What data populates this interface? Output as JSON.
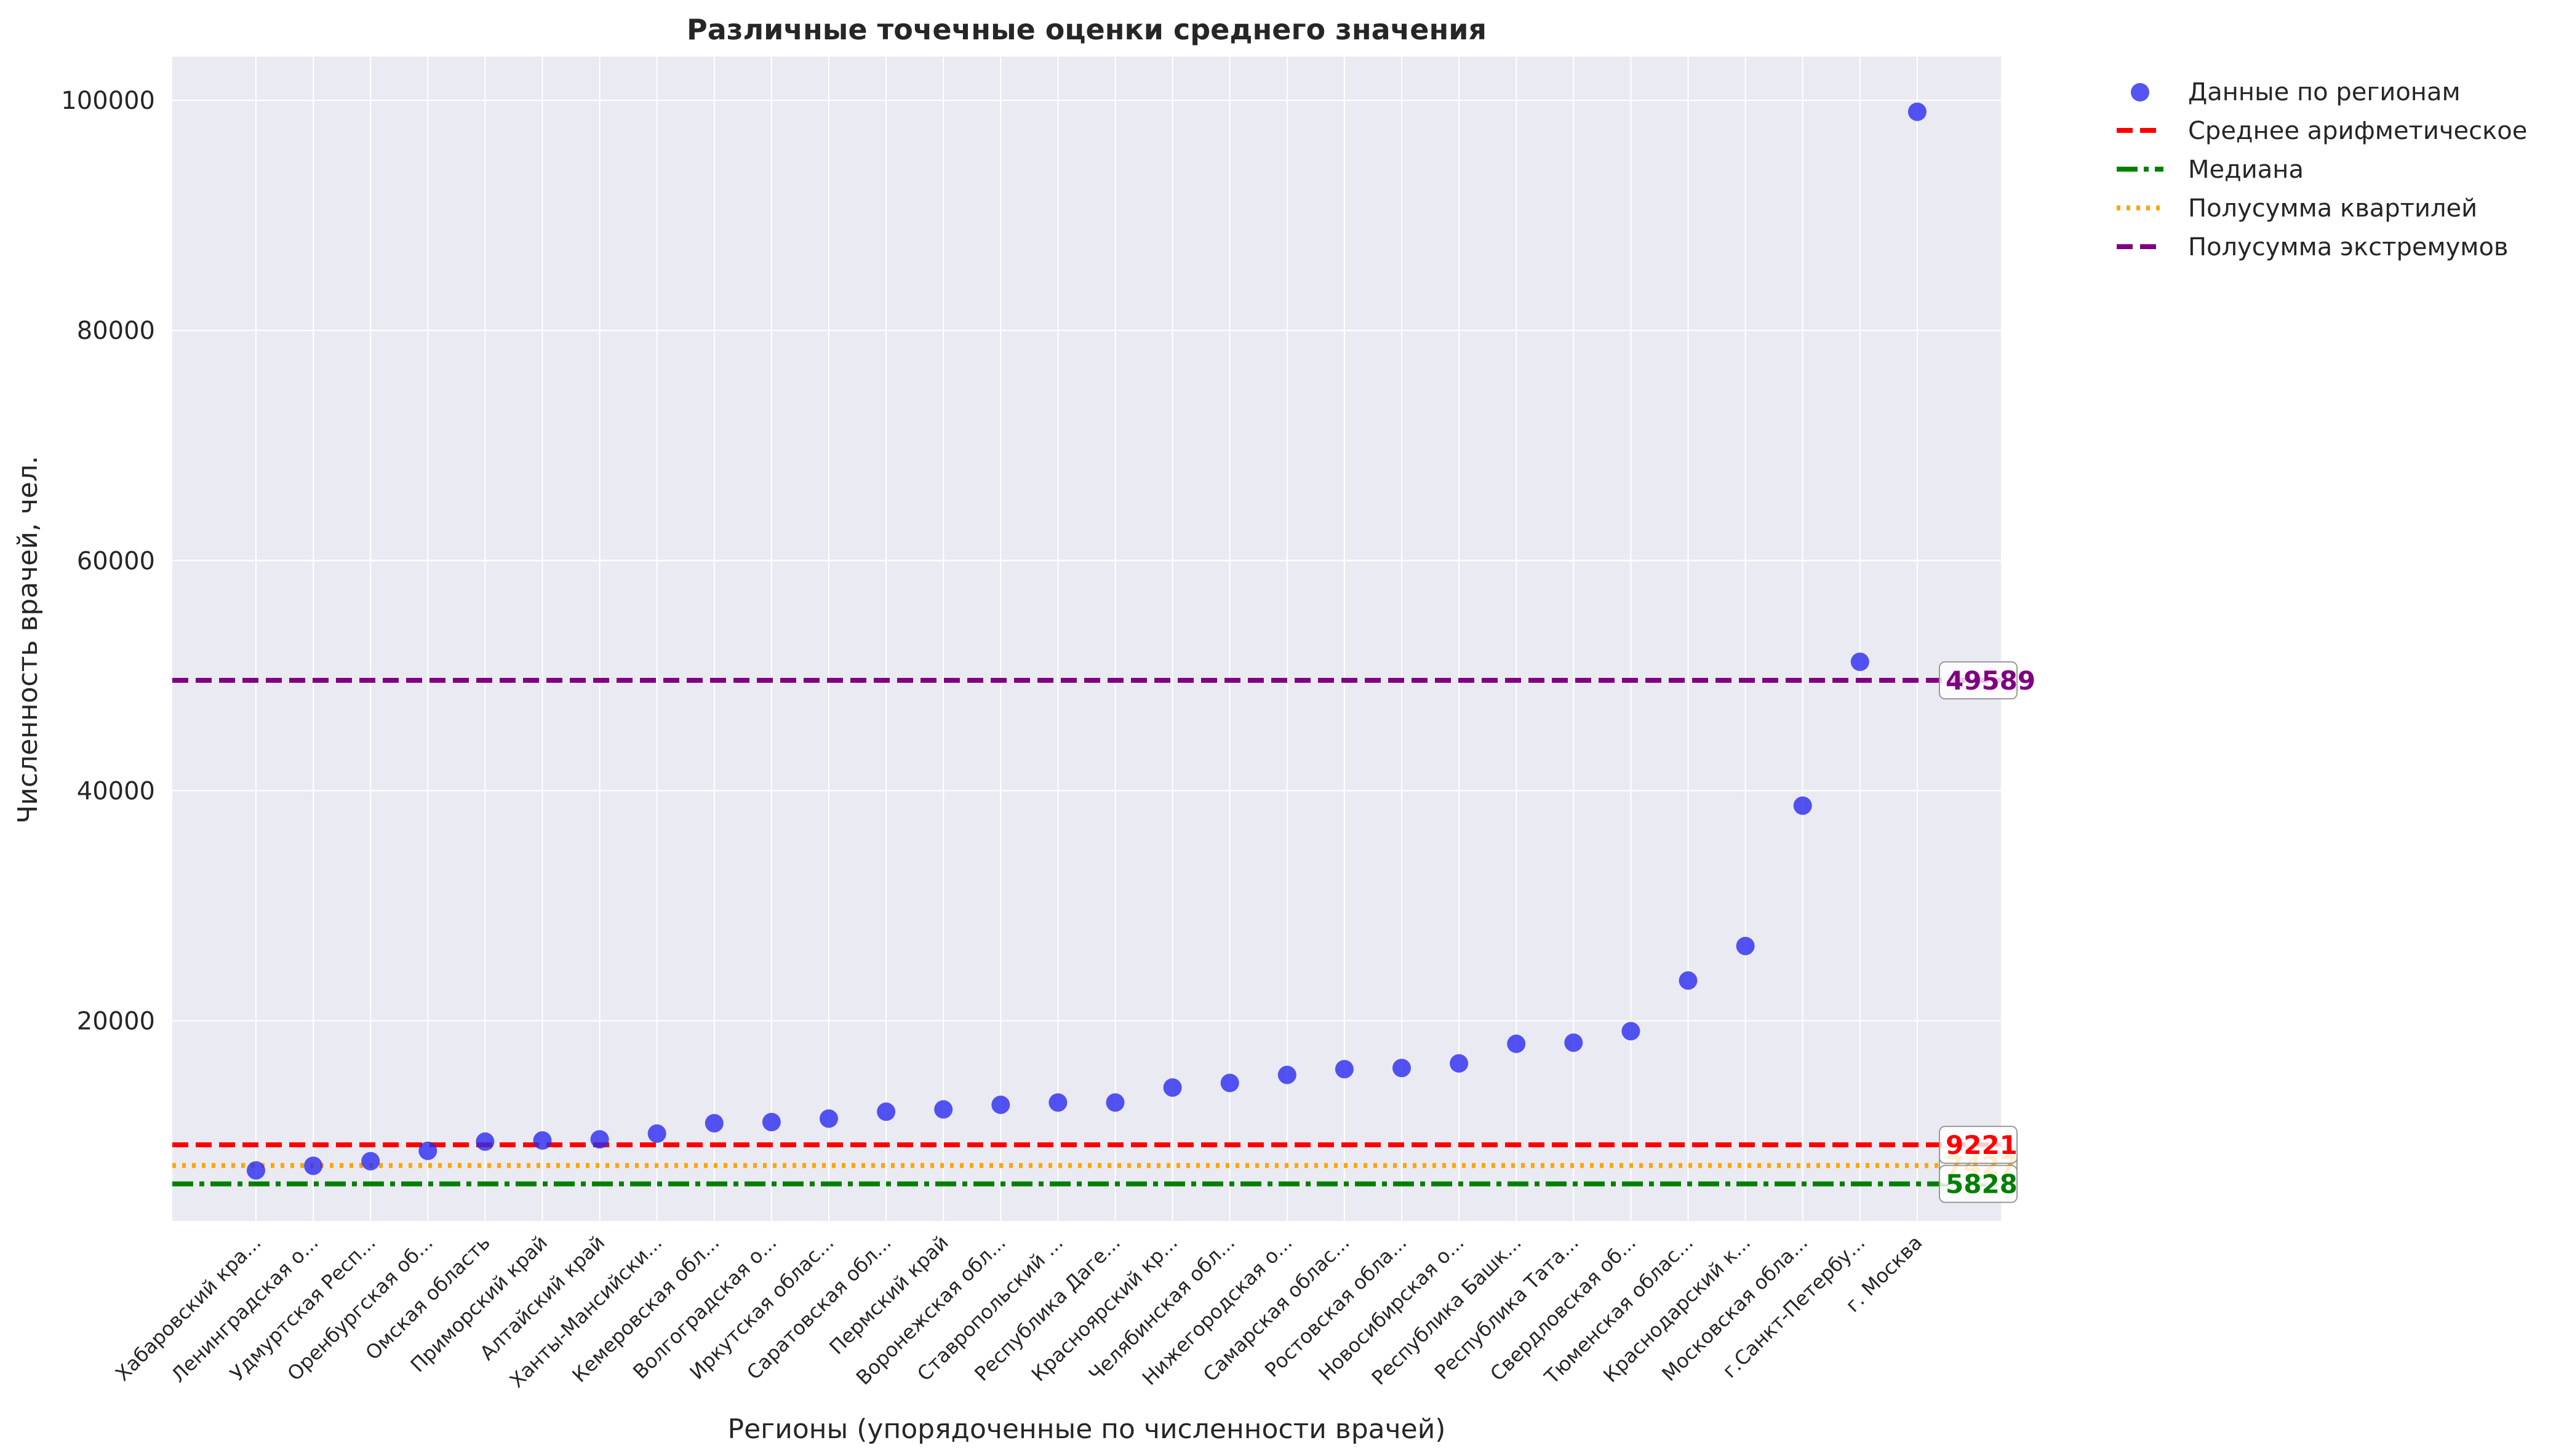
{
  "chart_data": {
    "type": "scatter",
    "title": "Различные точечные оценки среднего значения",
    "xlabel": "Регионы (упорядоченные по численности врачей)",
    "ylabel": "Численность врачей, чел.",
    "ylim": [
      2600,
      103800
    ],
    "yticks": [
      20000,
      40000,
      60000,
      80000,
      100000
    ],
    "grid": true,
    "legend_position": "outside top-right",
    "categories": [
      "Хабаровский кра...",
      "Ленинградская о...",
      "Удмуртская Респ...",
      "Оренбургская об...",
      "Омская область",
      "Приморский край",
      "Алтайский край",
      "Ханты-Мансийски...",
      "Кемеровская обл...",
      "Волгоградская о...",
      "Иркутская облас...",
      "Саратовская обл...",
      "Пермский край",
      "Воронежская обл...",
      "Ставропольский ...",
      "Республика Даге...",
      "Красноярский кр...",
      "Челябинская обл...",
      "Нижегородская о...",
      "Самарская облас...",
      "Ростовская обла...",
      "Новосибирская о...",
      "Республика Башк...",
      "Республика Тата...",
      "Свердловская об...",
      "Тюменская облас...",
      "Краснодарский к...",
      "Московская обла...",
      "г.Санкт-Петербу...",
      "г. Москва"
    ],
    "series": [
      {
        "name": "Данные по регионам",
        "color": "#2b2bf0",
        "values": [
          7000,
          7400,
          7800,
          8700,
          9500,
          9600,
          9700,
          10200,
          11100,
          11200,
          11500,
          12100,
          12300,
          12700,
          12900,
          12900,
          14200,
          14600,
          15300,
          15800,
          15900,
          16300,
          18000,
          18100,
          19100,
          23500,
          26500,
          38700,
          51200,
          99000
        ]
      }
    ],
    "reference_lines": [
      {
        "name": "Среднее арифметическое",
        "value": 9221,
        "label": "9221",
        "color": "#ff0000",
        "style": "dashed"
      },
      {
        "name": "Медиана",
        "value": 5828,
        "label": "5828",
        "color": "#008000",
        "style": "dashdot"
      },
      {
        "name": "Полусумма квартилей",
        "value": 7427,
        "label": "7427",
        "color": "#ffa500",
        "style": "dotted"
      },
      {
        "name": "Полусумма экстремумов",
        "value": 49589,
        "label": "49589",
        "color": "#800080",
        "style": "dashed"
      }
    ],
    "colors": {
      "plot_background": "#eaeaf2",
      "grid": "#ffffff",
      "text": "#262626"
    }
  }
}
